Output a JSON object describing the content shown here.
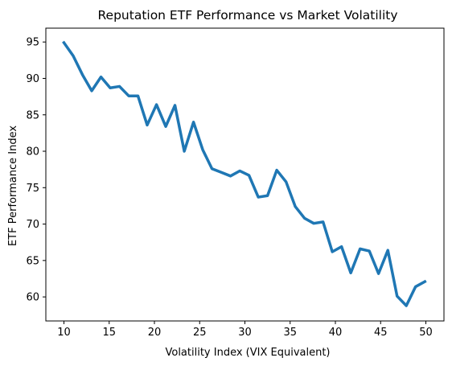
{
  "chart_data": {
    "type": "line",
    "title": "Reputation ETF Performance vs Market Volatility",
    "xlabel": "Volatility Index (VIX Equivalent)",
    "ylabel": "ETF Performance Index",
    "xlim": [
      8.0,
      52.0
    ],
    "ylim": [
      56.7,
      96.9
    ],
    "xticks": [
      10,
      15,
      20,
      25,
      30,
      35,
      40,
      45,
      50
    ],
    "yticks": [
      60,
      65,
      70,
      75,
      80,
      85,
      90,
      95
    ],
    "grid": false,
    "series": [
      {
        "color": "#1f77b4",
        "x": [
          10.0,
          11.02,
          12.05,
          13.07,
          14.09,
          15.11,
          16.14,
          17.16,
          18.18,
          19.2,
          20.23,
          21.25,
          22.27,
          23.3,
          24.32,
          25.34,
          26.36,
          27.39,
          28.41,
          29.43,
          30.45,
          31.48,
          32.5,
          33.52,
          34.55,
          35.57,
          36.59,
          37.61,
          38.64,
          39.66,
          40.68,
          41.7,
          42.73,
          43.75,
          44.77,
          45.8,
          46.82,
          47.84,
          48.86,
          49.89
        ],
        "y": [
          94.9,
          93.1,
          90.5,
          88.3,
          90.2,
          88.7,
          88.9,
          87.6,
          87.6,
          83.6,
          86.4,
          83.4,
          86.3,
          80.0,
          84.0,
          80.2,
          77.6,
          77.1,
          76.6,
          77.3,
          76.7,
          73.7,
          73.9,
          77.4,
          75.8,
          72.4,
          70.8,
          70.1,
          70.3,
          66.2,
          66.9,
          63.3,
          66.6,
          66.3,
          63.2,
          66.4,
          60.1,
          58.8,
          61.4,
          62.1
        ]
      }
    ]
  }
}
